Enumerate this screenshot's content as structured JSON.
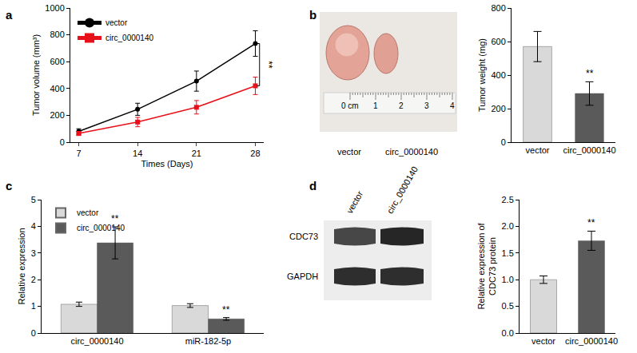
{
  "chart_data": [
    {
      "panel": "a",
      "type": "line",
      "x": [
        7,
        14,
        21,
        28
      ],
      "x_label": "Times (Days)",
      "y_label": "Tumor volume (mm³)",
      "xlim": [
        6,
        29
      ],
      "xticks": [
        7,
        14,
        21,
        28
      ],
      "ylim": [
        0,
        1000
      ],
      "yticks": [
        0,
        200,
        400,
        600,
        800,
        1000
      ],
      "legend": "upper left",
      "grid": false,
      "series": [
        {
          "name": "vector",
          "color": "#000000",
          "marker": "circle",
          "values": [
            80,
            245,
            455,
            735
          ],
          "errors": [
            20,
            45,
            75,
            95
          ]
        },
        {
          "name": "circ_0000140",
          "color": "#e8101a",
          "marker": "square",
          "values": [
            65,
            150,
            260,
            420
          ],
          "errors": [
            15,
            35,
            50,
            65
          ]
        }
      ],
      "annotations": [
        {
          "text": "**"
        }
      ]
    },
    {
      "type": "bar",
      "categories": [
        "vector",
        "circ_0000140"
      ],
      "values": [
        570,
        290
      ],
      "errors": [
        90,
        70
      ],
      "colors": [
        "#d9d9d9",
        "#5a5a5a"
      ],
      "y_label": "Tumor weight (mg)",
      "ylim": [
        0,
        800
      ],
      "yticks": [
        0,
        200,
        400,
        600,
        800
      ],
      "grid": false,
      "annotations": [
        {
          "text": "**",
          "category": "circ_0000140"
        }
      ]
    },
    {
      "panel": "c",
      "type": "bar",
      "categories": [
        "circ_0000140",
        "miR-182-5p"
      ],
      "y_label": "Relative expression",
      "ylim": [
        0,
        5
      ],
      "yticks": [
        0,
        1,
        2,
        3,
        4,
        5
      ],
      "legend": "upper left",
      "grid": false,
      "series": [
        {
          "name": "vector",
          "color": "#d9d9d9",
          "values": [
            1.08,
            1.03
          ],
          "errors": [
            0.08,
            0.07
          ]
        },
        {
          "name": "circ_0000140",
          "color": "#5a5a5a",
          "values": [
            3.38,
            0.53
          ],
          "errors": [
            0.6,
            0.05
          ]
        }
      ],
      "annotations": [
        {
          "text": "**",
          "series": "circ_0000140",
          "category": "circ_0000140"
        },
        {
          "text": "**",
          "series": "circ_0000140",
          "category": "miR-182-5p"
        }
      ]
    },
    {
      "type": "bar",
      "categories": [
        "vector",
        "circ_0000140"
      ],
      "values": [
        1.0,
        1.73
      ],
      "errors": [
        0.07,
        0.18
      ],
      "colors": [
        "#d9d9d9",
        "#5a5a5a"
      ],
      "y_label": [
        "Relative expression of",
        "CDC73 protein"
      ],
      "ylim": [
        0,
        2.5
      ],
      "yticks": [
        {
          "value": 0,
          "label": "0.0"
        },
        0.5,
        {
          "value": 1,
          "label": "1.0"
        },
        1.5,
        {
          "value": 2,
          "label": "2.0"
        },
        2.5
      ],
      "grid": false,
      "annotations": [
        {
          "text": "**",
          "category": "circ_0000140"
        }
      ]
    }
  ],
  "photo": {
    "panel": "b",
    "scale": [
      "0 cm",
      "1",
      "2",
      "3",
      "4"
    ],
    "labels": [
      "vector",
      "circ_0000140"
    ]
  },
  "blot": {
    "panel": "d",
    "columns": [
      "vector",
      "circ_0000140"
    ],
    "rows": [
      "CDC73",
      "GAPDH"
    ]
  }
}
